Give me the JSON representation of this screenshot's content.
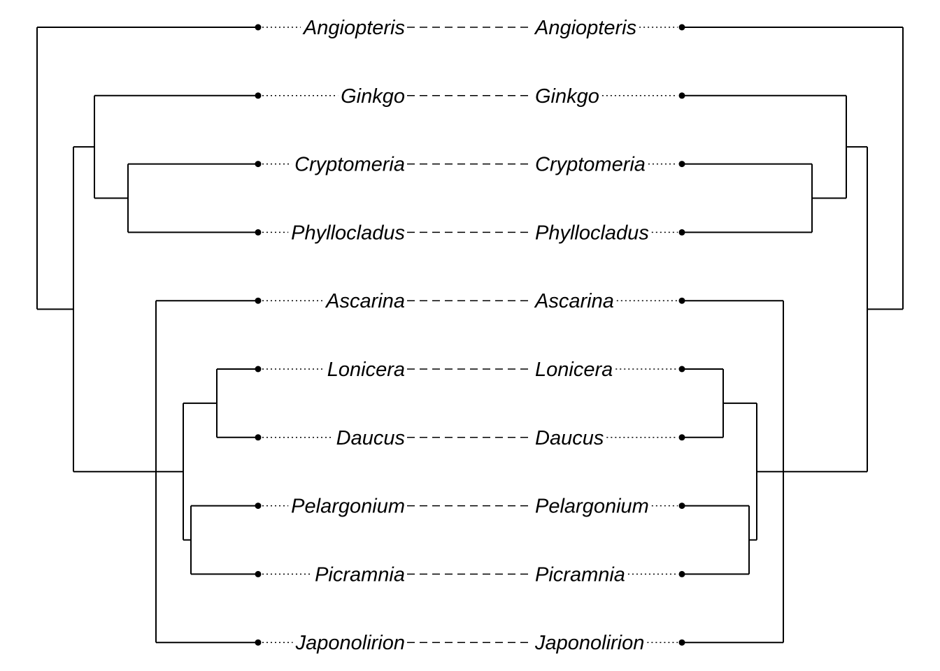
{
  "taxa": [
    "Angiopteris",
    "Ginkgo",
    "Cryptomeria",
    "Phyllocladus",
    "Ascarina",
    "Lonicera",
    "Daucus",
    "Pelargonium",
    "Picramnia",
    "Japonolirion"
  ],
  "left_tree": {
    "root": {
      "children": [
        {
          "leaf": 0
        },
        {
          "children": [
            {
              "children": [
                {
                  "leaf": 1
                },
                {
                  "children": [
                    {
                      "leaf": 2
                    },
                    {
                      "leaf": 3
                    }
                  ]
                }
              ]
            },
            {
              "children": [
                {
                  "leaf": 4
                },
                {
                  "children": [
                    {
                      "children": [
                        {
                          "leaf": 5
                        },
                        {
                          "leaf": 6
                        }
                      ]
                    },
                    {
                      "children": [
                        {
                          "leaf": 7
                        },
                        {
                          "leaf": 8
                        }
                      ]
                    }
                  ]
                },
                {
                  "leaf": 9
                }
              ]
            }
          ]
        }
      ]
    }
  },
  "right_tree": {
    "root": {
      "children": [
        {
          "leaf": 0
        },
        {
          "children": [
            {
              "children": [
                {
                  "leaf": 1
                },
                {
                  "children": [
                    {
                      "leaf": 2
                    },
                    {
                      "leaf": 3
                    }
                  ]
                }
              ]
            },
            {
              "children": [
                {
                  "leaf": 4
                },
                {
                  "children": [
                    {
                      "children": [
                        {
                          "leaf": 5
                        },
                        {
                          "leaf": 6
                        }
                      ]
                    },
                    {
                      "children": [
                        {
                          "leaf": 7
                        },
                        {
                          "leaf": 8
                        }
                      ]
                    }
                  ]
                },
                {
                  "leaf": 9
                }
              ]
            }
          ]
        }
      ]
    }
  },
  "links": [
    [
      0,
      0
    ],
    [
      1,
      1
    ],
    [
      2,
      2
    ],
    [
      3,
      3
    ],
    [
      4,
      4
    ],
    [
      5,
      5
    ],
    [
      6,
      6
    ],
    [
      7,
      7
    ],
    [
      8,
      8
    ],
    [
      9,
      9
    ]
  ]
}
